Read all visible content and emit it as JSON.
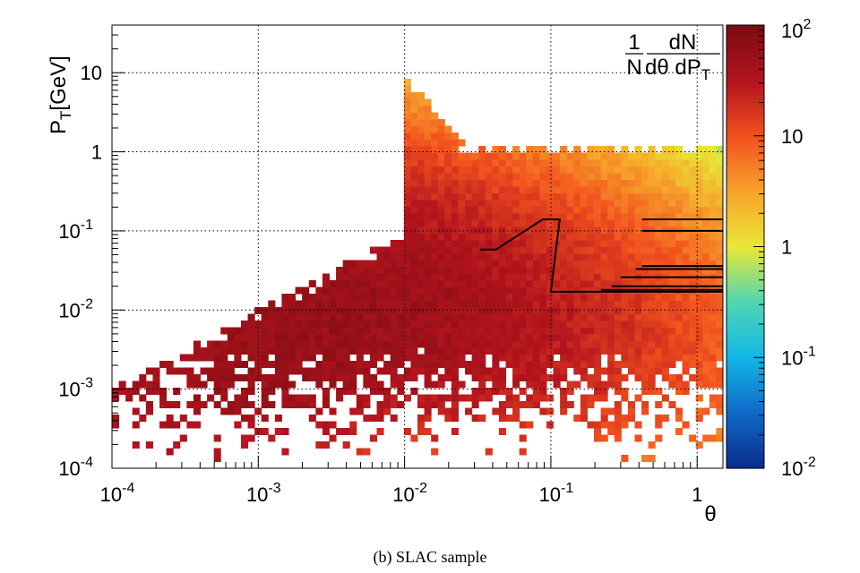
{
  "chart_data": {
    "type": "heatmap",
    "title": "",
    "xlabel": "θ",
    "ylabel_main": "P",
    "ylabel_sub": "T",
    "ylabel_unit": "[GeV]",
    "x_scale": "log",
    "y_scale": "log",
    "z_scale": "log",
    "xlim": [
      0.0001,
      1.5
    ],
    "ylim": [
      0.0001,
      40
    ],
    "zlim": [
      0.01,
      100
    ],
    "grid": true,
    "x_ticks": [
      {
        "value": 0.0001,
        "base": "10",
        "exp": "-4"
      },
      {
        "value": 0.001,
        "base": "10",
        "exp": "-3"
      },
      {
        "value": 0.01,
        "base": "10",
        "exp": "-2"
      },
      {
        "value": 0.1,
        "base": "10",
        "exp": "-1"
      },
      {
        "value": 1,
        "base": "1",
        "exp": ""
      }
    ],
    "y_ticks": [
      {
        "value": 0.0001,
        "base": "10",
        "exp": "-4"
      },
      {
        "value": 0.001,
        "base": "10",
        "exp": "-3"
      },
      {
        "value": 0.01,
        "base": "10",
        "exp": "-2"
      },
      {
        "value": 0.1,
        "base": "10",
        "exp": "-1"
      },
      {
        "value": 1,
        "base": "1",
        "exp": ""
      },
      {
        "value": 10,
        "base": "10",
        "exp": ""
      }
    ],
    "z_ticks": [
      {
        "value": 0.01,
        "base": "10",
        "exp": "-2"
      },
      {
        "value": 0.1,
        "base": "10",
        "exp": "-1"
      },
      {
        "value": 1,
        "base": "1",
        "exp": ""
      },
      {
        "value": 10,
        "base": "10",
        "exp": ""
      },
      {
        "value": 100,
        "base": "10",
        "exp": "2"
      }
    ],
    "z_label": {
      "num1": "1",
      "den1": "N",
      "num2": "dN",
      "den2": "dθ dP",
      "den2_sub": "T"
    },
    "colormap": [
      "#0b2b8c",
      "#1068c8",
      "#12b6e6",
      "#4fd6b4",
      "#e8e836",
      "#f7a32b",
      "#f2501e",
      "#b3141e",
      "#7a0c12"
    ],
    "cut_lines": [
      [
        [
          0.033,
          0.058
        ],
        [
          0.042,
          0.058
        ],
        [
          0.088,
          0.14
        ],
        [
          0.115,
          0.14
        ],
        [
          0.1,
          0.017
        ],
        [
          1.5,
          0.017
        ]
      ],
      [
        [
          0.42,
          0.14
        ],
        [
          1.5,
          0.14
        ]
      ],
      [
        [
          0.42,
          0.1
        ],
        [
          1.5,
          0.1
        ]
      ],
      [
        [
          0.42,
          0.036
        ],
        [
          1.5,
          0.036
        ]
      ],
      [
        [
          0.38,
          0.033
        ],
        [
          1.5,
          0.033
        ]
      ],
      [
        [
          0.3,
          0.026
        ],
        [
          1.5,
          0.026
        ]
      ],
      [
        [
          0.26,
          0.02
        ],
        [
          1.5,
          0.02
        ]
      ],
      [
        [
          0.22,
          0.018
        ],
        [
          1.5,
          0.018
        ]
      ]
    ]
  },
  "caption": "(b) SLAC sample"
}
